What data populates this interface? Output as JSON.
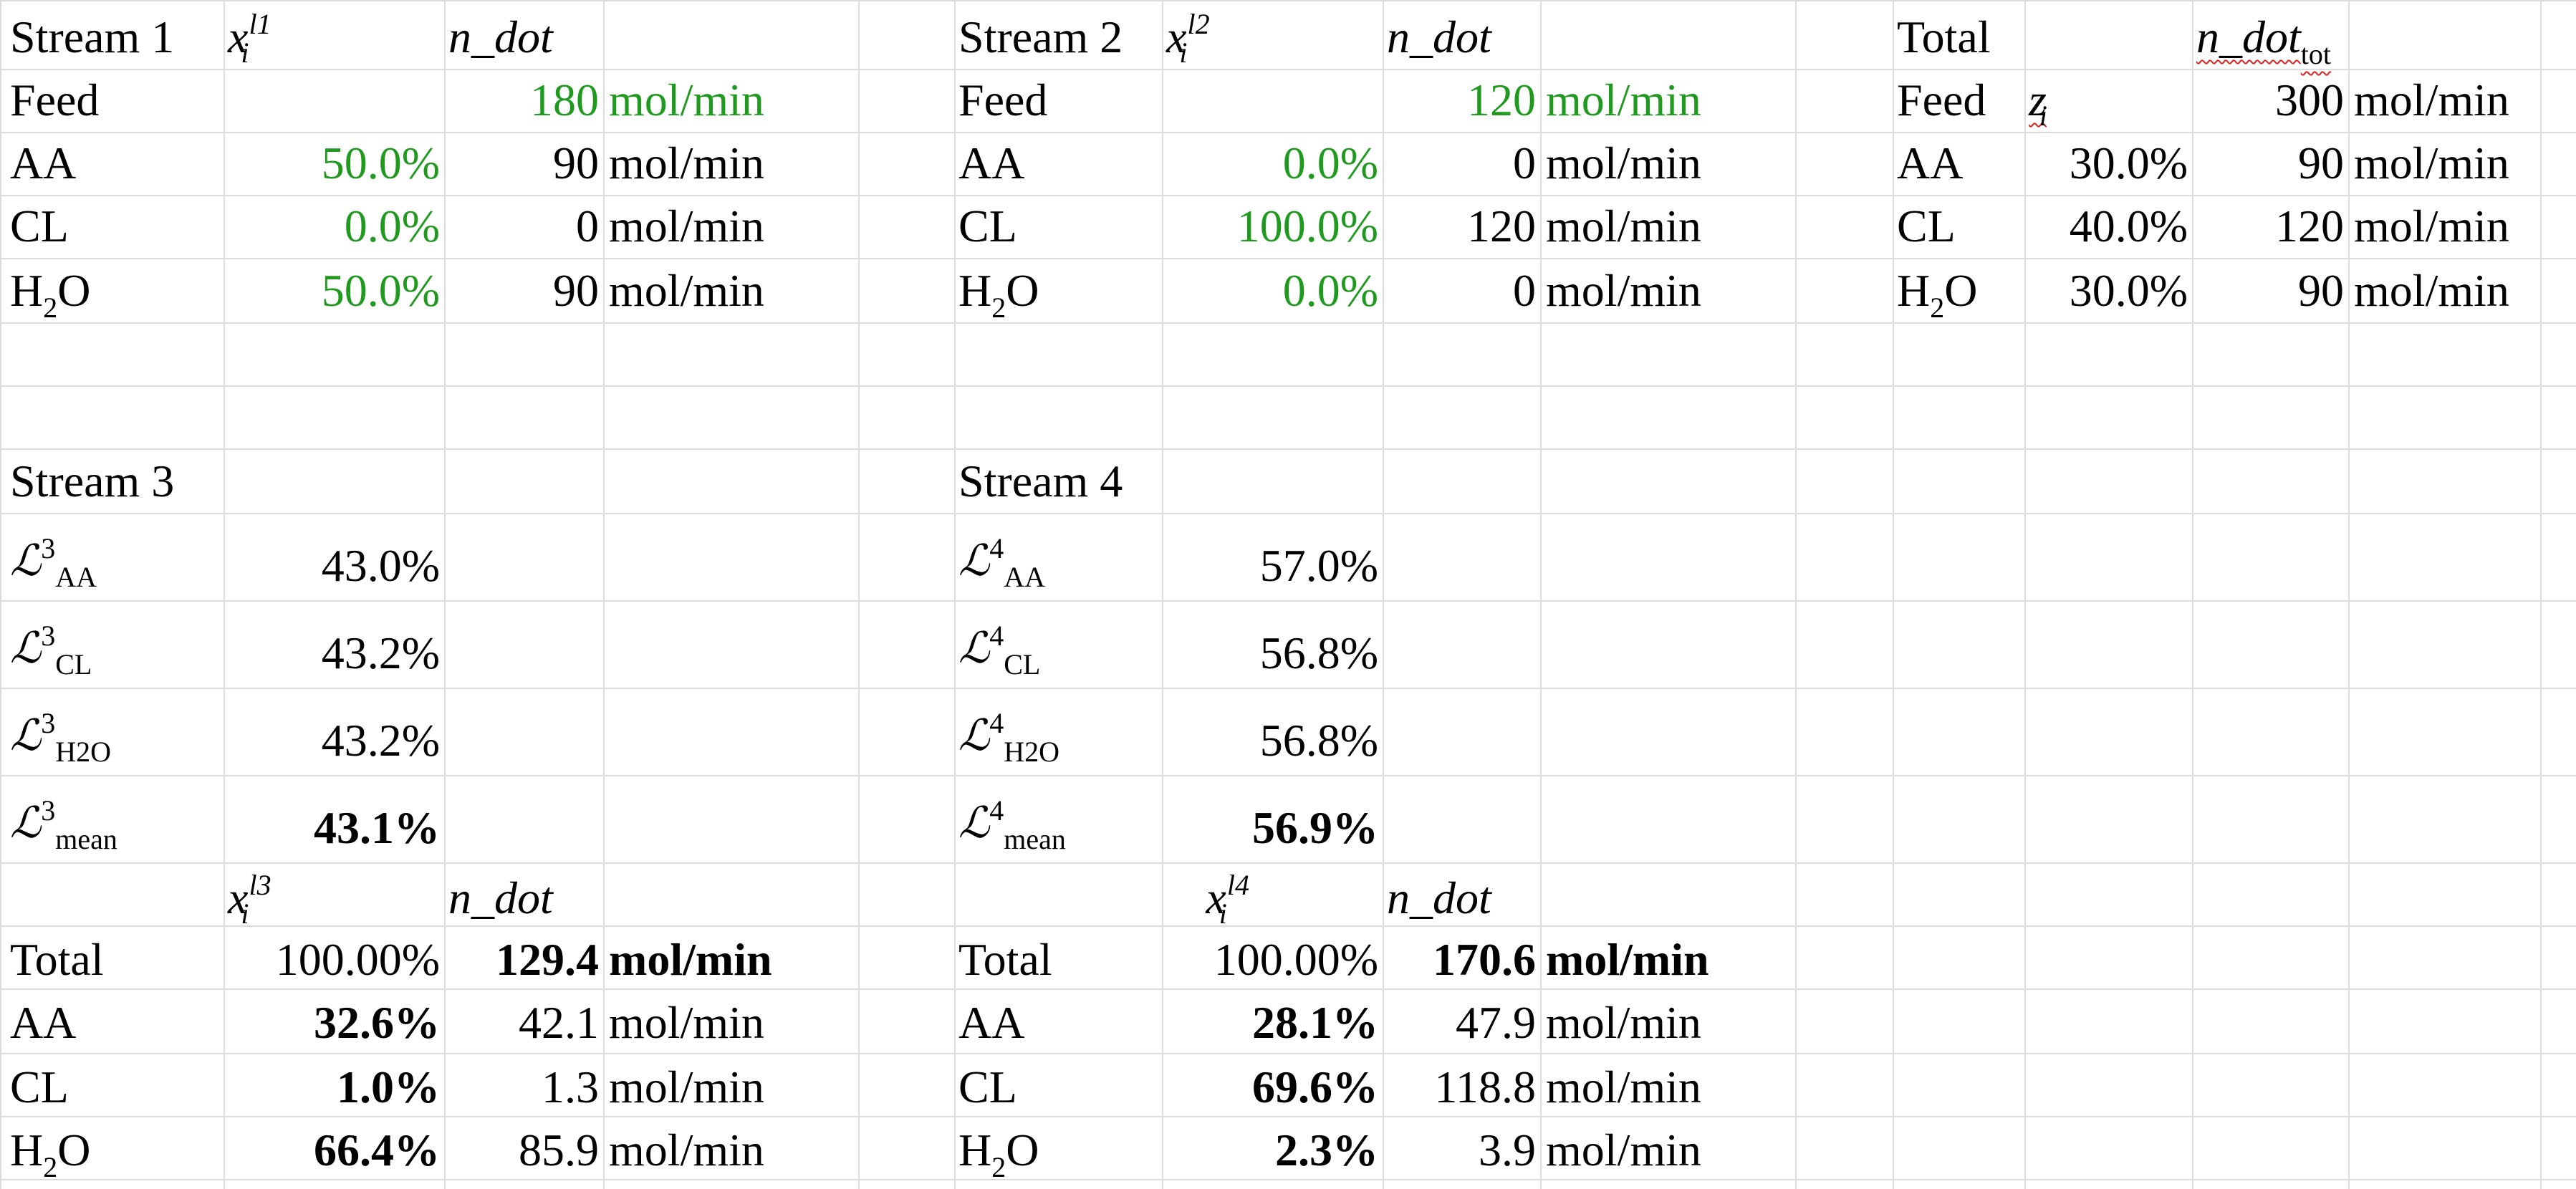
{
  "stream1": {
    "title": "Stream 1",
    "x_symbol": "x",
    "x_sub": "i",
    "x_sup": "l1",
    "ndot_label": "n_dot",
    "feed_label": "Feed",
    "feed_value": "180",
    "unit": "mol/min",
    "rows": [
      {
        "comp_main": "AA",
        "comp_sub": "",
        "comp_tail": "",
        "frac": "50.0%",
        "value": "90"
      },
      {
        "comp_main": "CL",
        "comp_sub": "",
        "comp_tail": "",
        "frac": "0.0%",
        "value": "0"
      },
      {
        "comp_main": "H",
        "comp_sub": "2",
        "comp_tail": "O",
        "frac": "50.0%",
        "value": "90"
      }
    ]
  },
  "stream2": {
    "title": "Stream 2",
    "x_symbol": "x",
    "x_sub": "i",
    "x_sup": "l2",
    "ndot_label": "n_dot",
    "feed_label": "Feed",
    "feed_value": "120",
    "unit": "mol/min",
    "rows": [
      {
        "comp_main": "AA",
        "comp_sub": "",
        "comp_tail": "",
        "frac": "0.0%",
        "value": "0"
      },
      {
        "comp_main": "CL",
        "comp_sub": "",
        "comp_tail": "",
        "frac": "100.0%",
        "value": "120"
      },
      {
        "comp_main": "H",
        "comp_sub": "2",
        "comp_tail": "O",
        "frac": "0.0%",
        "value": "0"
      }
    ]
  },
  "total": {
    "title": "Total",
    "ndot_main": "n_dot",
    "ndot_sub": "tot",
    "feed_label": "Feed",
    "z_label": "z",
    "z_sub": "i",
    "feed_value": "300",
    "unit": "mol/min",
    "rows": [
      {
        "comp_main": "AA",
        "comp_sub": "",
        "comp_tail": "",
        "frac": "30.0%",
        "value": "90"
      },
      {
        "comp_main": "CL",
        "comp_sub": "",
        "comp_tail": "",
        "frac": "40.0%",
        "value": "120"
      },
      {
        "comp_main": "H",
        "comp_sub": "2",
        "comp_tail": "O",
        "frac": "30.0%",
        "value": "90"
      }
    ]
  },
  "stream3": {
    "title": "Stream 3",
    "L_symbol": "ℒ",
    "L_sup": "3",
    "recoveries": [
      {
        "sub": "AA",
        "value": "43.0%"
      },
      {
        "sub": "CL",
        "value": "43.2%"
      },
      {
        "sub": "H2O",
        "value": "43.2%"
      },
      {
        "sub": "mean",
        "value": "43.1%"
      }
    ],
    "x_symbol": "x",
    "x_sub": "i",
    "x_sup": "l3",
    "ndot_label": "n_dot",
    "total_label": "Total",
    "total_frac": "100.00%",
    "total_value": "129.4",
    "unit": "mol/min",
    "rows": [
      {
        "comp_main": "AA",
        "comp_sub": "",
        "comp_tail": "",
        "frac": "32.6%",
        "value": "42.1"
      },
      {
        "comp_main": "CL",
        "comp_sub": "",
        "comp_tail": "",
        "frac": "1.0%",
        "value": "1.3"
      },
      {
        "comp_main": "H",
        "comp_sub": "2",
        "comp_tail": "O",
        "frac": "66.4%",
        "value": "85.9"
      }
    ]
  },
  "stream4": {
    "title": "Stream 4",
    "L_symbol": "ℒ",
    "L_sup": "4",
    "recoveries": [
      {
        "sub": "AA",
        "value": "57.0%"
      },
      {
        "sub": "CL",
        "value": "56.8%"
      },
      {
        "sub": "H2O",
        "value": "56.8%"
      },
      {
        "sub": "mean",
        "value": "56.9%"
      }
    ],
    "x_symbol": "x",
    "x_sub": "i",
    "x_sup": "l4",
    "ndot_label": "n_dot",
    "total_label": "Total",
    "total_frac": "100.00%",
    "total_value": "170.6",
    "unit": "mol/min",
    "rows": [
      {
        "comp_main": "AA",
        "comp_sub": "",
        "comp_tail": "",
        "frac": "28.1%",
        "value": "47.9"
      },
      {
        "comp_main": "CL",
        "comp_sub": "",
        "comp_tail": "",
        "frac": "69.6%",
        "value": "118.8"
      },
      {
        "comp_main": "H",
        "comp_sub": "2",
        "comp_tail": "O",
        "frac": "2.3%",
        "value": "3.9"
      }
    ]
  },
  "colors": {
    "input_green": "#1f9a1f",
    "gridline": "#dcdcdc",
    "spellcheck_red": "#d22222"
  }
}
